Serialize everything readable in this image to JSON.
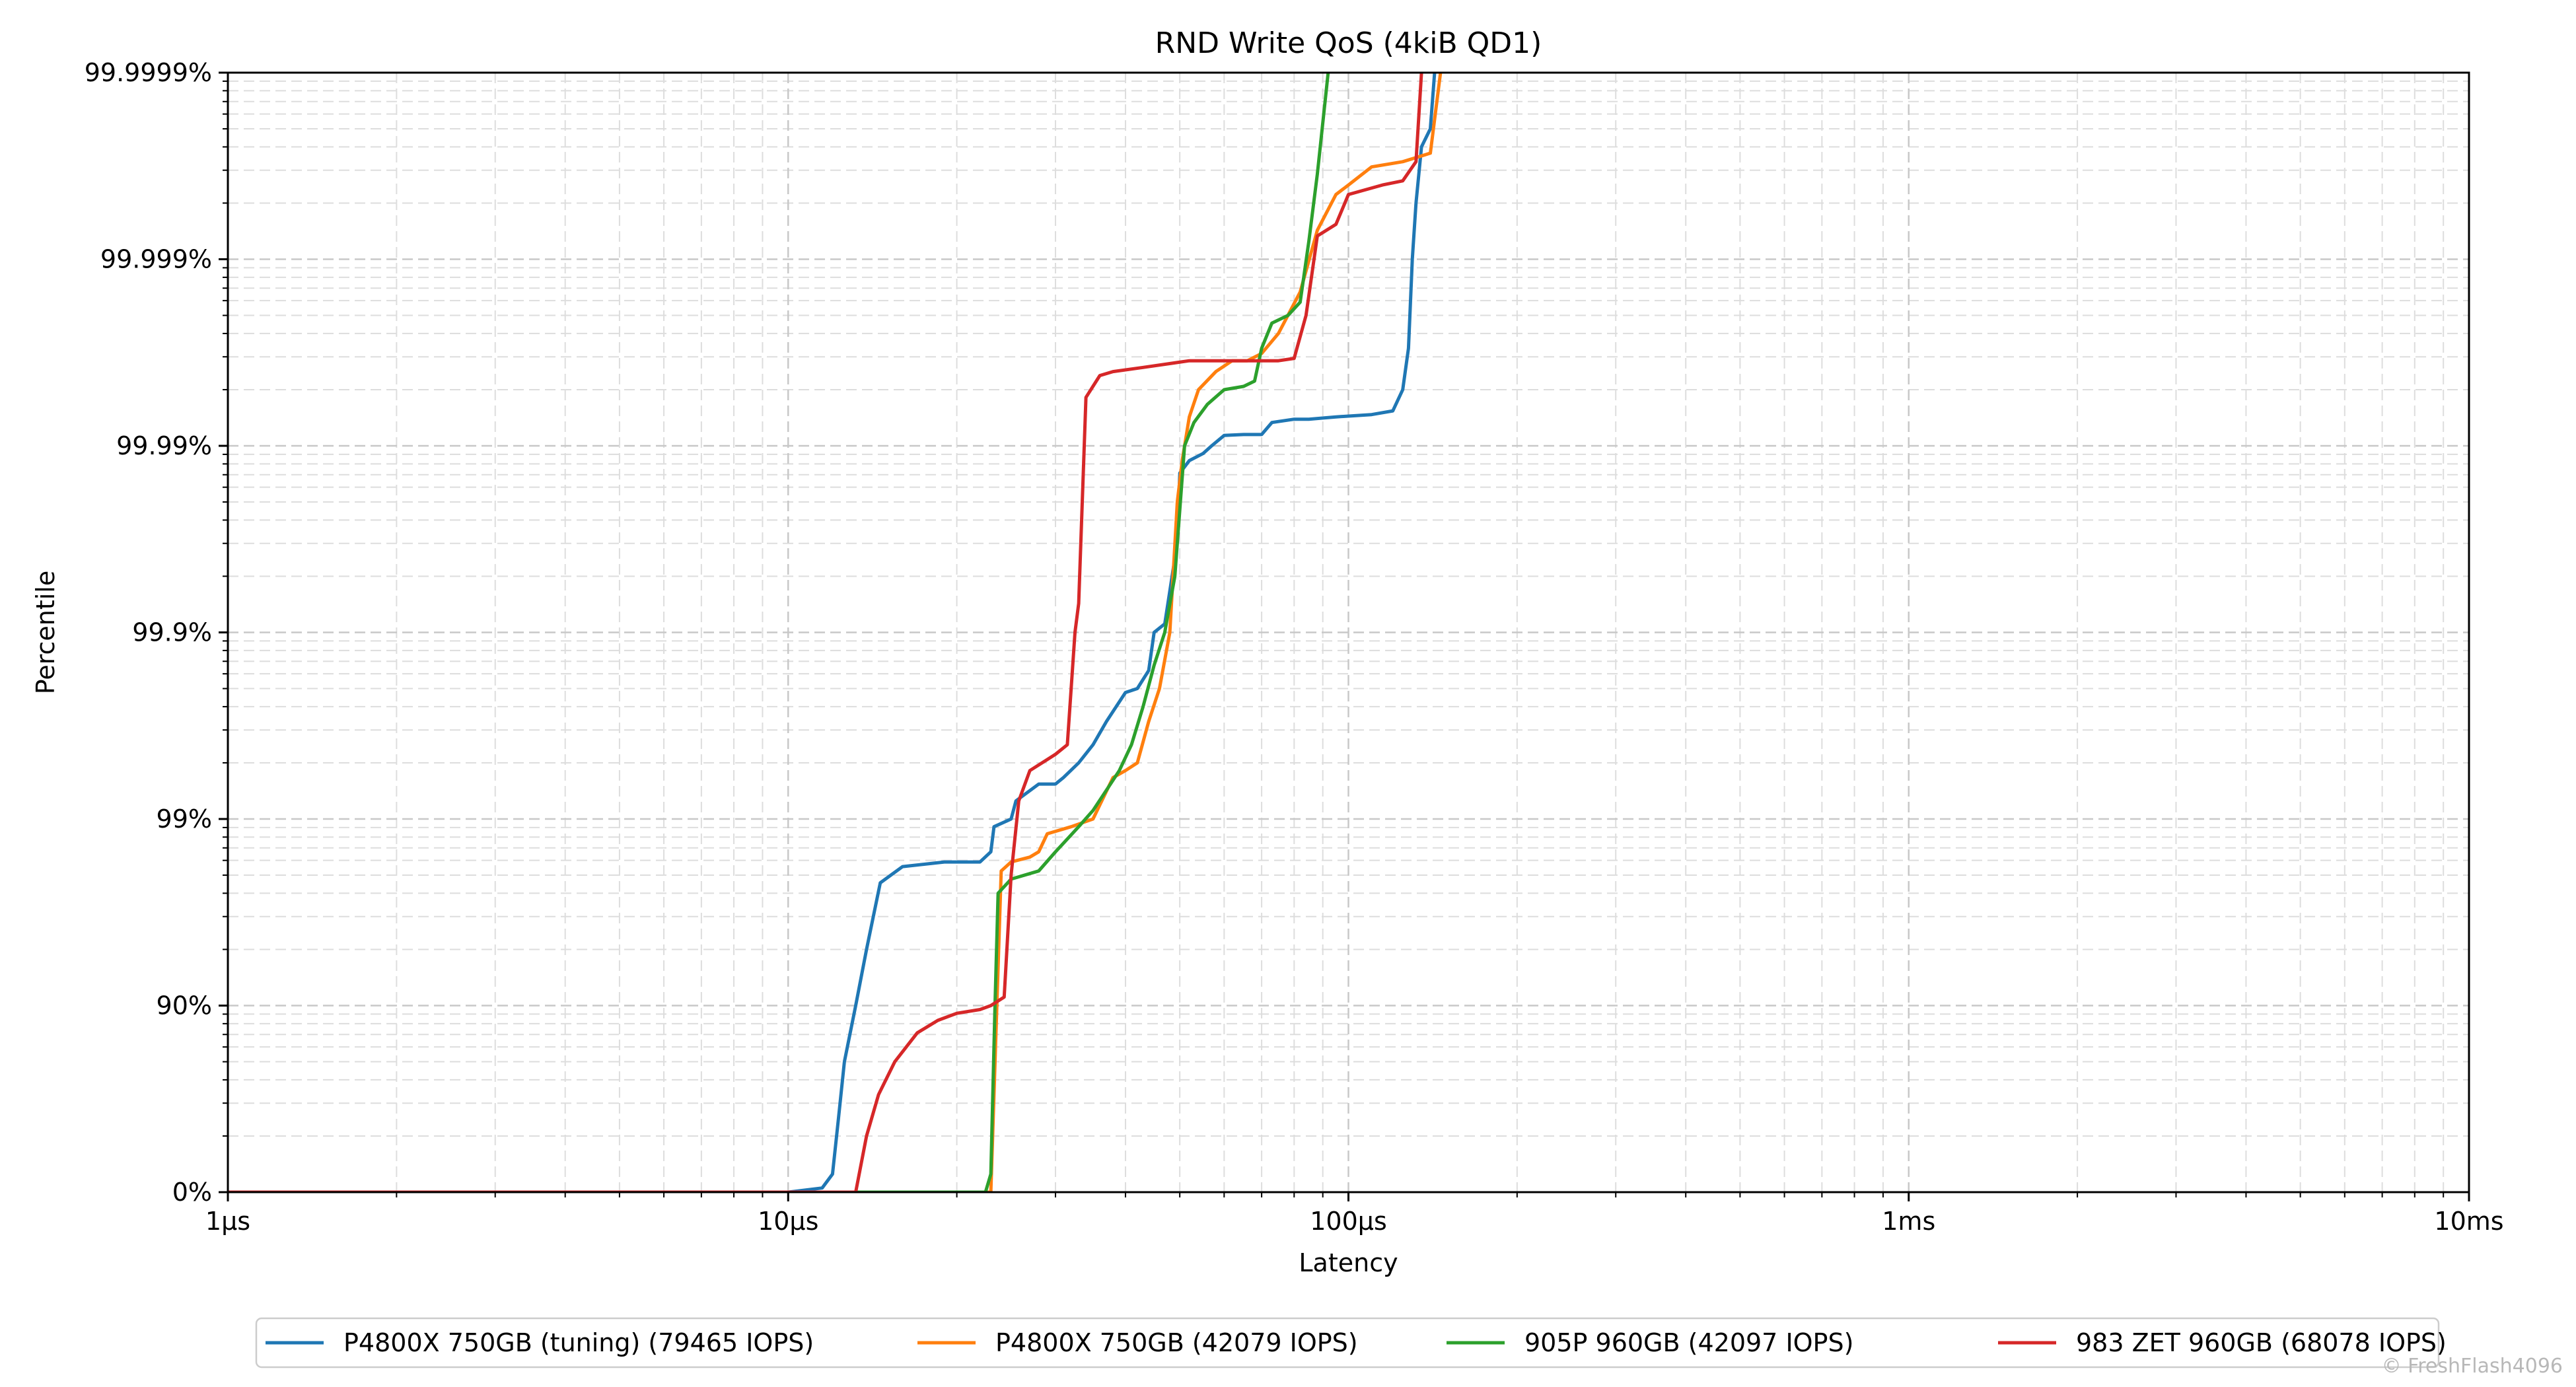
{
  "chart_data": {
    "type": "line",
    "title": "RND Write QoS (4kiB QD1)",
    "xlabel": "Latency",
    "ylabel": "Percentile",
    "x_scale": "log",
    "x_unit": "µs",
    "xlim": [
      1,
      10000
    ],
    "x_ticks": [
      {
        "value": 1,
        "label": "1µs"
      },
      {
        "value": 10,
        "label": "10µs"
      },
      {
        "value": 100,
        "label": "100µs"
      },
      {
        "value": 1000,
        "label": "1ms"
      },
      {
        "value": 10000,
        "label": "10ms"
      }
    ],
    "y_scale": "log-nines",
    "ylim": [
      0,
      99.9999
    ],
    "y_ticks": [
      {
        "value": 0,
        "label": "0%"
      },
      {
        "value": 90,
        "label": "90%"
      },
      {
        "value": 99,
        "label": "99%"
      },
      {
        "value": 99.9,
        "label": "99.9%"
      },
      {
        "value": 99.99,
        "label": "99.99%"
      },
      {
        "value": 99.999,
        "label": "99.999%"
      },
      {
        "value": 99.9999,
        "label": "99.9999%"
      }
    ],
    "grid": true,
    "legend_position": "bottom-center",
    "series": [
      {
        "name": "P4800X 750GB (tuning) (79465 IOPS)",
        "color": "#1f77b4",
        "points": [
          [
            1,
            0
          ],
          [
            10,
            0
          ],
          [
            11.5,
            5
          ],
          [
            12,
            20
          ],
          [
            12.3,
            60
          ],
          [
            12.6,
            80
          ],
          [
            13.2,
            90
          ],
          [
            13.8,
            95
          ],
          [
            14.6,
            97.8
          ],
          [
            16,
            98.2
          ],
          [
            19,
            98.3
          ],
          [
            22,
            98.3
          ],
          [
            23,
            98.5
          ],
          [
            23.3,
            98.9
          ],
          [
            25,
            99
          ],
          [
            25.5,
            99.2
          ],
          [
            28,
            99.35
          ],
          [
            30,
            99.35
          ],
          [
            31,
            99.4
          ],
          [
            33,
            99.5
          ],
          [
            35,
            99.6
          ],
          [
            37,
            99.7
          ],
          [
            40,
            99.79
          ],
          [
            42,
            99.8
          ],
          [
            44,
            99.84
          ],
          [
            45,
            99.9
          ],
          [
            47,
            99.91
          ],
          [
            48,
            99.94
          ],
          [
            49,
            99.96
          ],
          [
            49.5,
            99.97
          ],
          [
            50,
            99.986
          ],
          [
            52,
            99.988
          ],
          [
            55,
            99.989
          ],
          [
            57,
            99.99
          ],
          [
            60,
            99.9912
          ],
          [
            65,
            99.9913
          ],
          [
            70,
            99.9913
          ],
          [
            73,
            99.9925
          ],
          [
            80,
            99.9928
          ],
          [
            85,
            99.9928
          ],
          [
            95,
            99.993
          ],
          [
            110,
            99.9932
          ],
          [
            120,
            99.9935
          ],
          [
            125,
            99.995
          ],
          [
            128,
            99.997
          ],
          [
            130,
            99.999
          ],
          [
            132,
            99.9995
          ],
          [
            135,
            99.99975
          ],
          [
            140,
            99.9998
          ],
          [
            145,
            99.99995
          ],
          [
            148,
            99.9999
          ]
        ]
      },
      {
        "name": "P4800X 750GB (42079 IOPS)",
        "color": "#ff7f0e",
        "points": [
          [
            1,
            0
          ],
          [
            23,
            0
          ],
          [
            24,
            98.1
          ],
          [
            25,
            98.3
          ],
          [
            27,
            98.4
          ],
          [
            28,
            98.5
          ],
          [
            29,
            98.8
          ],
          [
            32,
            98.9
          ],
          [
            35,
            99.0
          ],
          [
            38,
            99.4
          ],
          [
            40,
            99.45
          ],
          [
            42,
            99.5
          ],
          [
            44,
            99.7
          ],
          [
            46,
            99.8
          ],
          [
            48,
            99.9
          ],
          [
            49.5,
            99.98
          ],
          [
            50.5,
            99.988
          ],
          [
            52,
            99.993
          ],
          [
            54,
            99.995
          ],
          [
            58,
            99.996
          ],
          [
            62,
            99.9965
          ],
          [
            66,
            99.9965
          ],
          [
            70,
            99.9968
          ],
          [
            75,
            99.9975
          ],
          [
            82,
            99.9985
          ],
          [
            88,
            99.9993
          ],
          [
            95,
            99.99955
          ],
          [
            100,
            99.9996
          ],
          [
            110,
            99.99968
          ],
          [
            125,
            99.9997
          ],
          [
            140,
            99.99973
          ],
          [
            146,
            99.9999
          ]
        ]
      },
      {
        "name": "905P 960GB (42097 IOPS)",
        "color": "#2ca02c",
        "points": [
          [
            1,
            0
          ],
          [
            22.5,
            0
          ],
          [
            23,
            20
          ],
          [
            23.4,
            90
          ],
          [
            23.7,
            97.5
          ],
          [
            25,
            97.9
          ],
          [
            28,
            98.1
          ],
          [
            30,
            98.5
          ],
          [
            33,
            98.9
          ],
          [
            35,
            99.1
          ],
          [
            37,
            99.3
          ],
          [
            39,
            99.45
          ],
          [
            41,
            99.6
          ],
          [
            43,
            99.75
          ],
          [
            45,
            99.85
          ],
          [
            47,
            99.9
          ],
          [
            49,
            99.95
          ],
          [
            51,
            99.99
          ],
          [
            53,
            99.9925
          ],
          [
            56,
            99.994
          ],
          [
            60,
            99.995
          ],
          [
            65,
            99.9952
          ],
          [
            68,
            99.9955
          ],
          [
            70,
            99.997
          ],
          [
            73,
            99.9978
          ],
          [
            78,
            99.998
          ],
          [
            82,
            99.9983
          ],
          [
            85,
            99.9992
          ],
          [
            88,
            99.99965
          ],
          [
            92,
            99.9999
          ]
        ]
      },
      {
        "name": "983 ZET 960GB (68078 IOPS)",
        "color": "#d62728",
        "points": [
          [
            1,
            0
          ],
          [
            13.2,
            0
          ],
          [
            13.8,
            50
          ],
          [
            14.5,
            70
          ],
          [
            15.5,
            80
          ],
          [
            17,
            86
          ],
          [
            18.5,
            88
          ],
          [
            20,
            89
          ],
          [
            22,
            89.5
          ],
          [
            23,
            90
          ],
          [
            24.3,
            91
          ],
          [
            25,
            98
          ],
          [
            25.8,
            99.2
          ],
          [
            27,
            99.45
          ],
          [
            29,
            99.52
          ],
          [
            30,
            99.55
          ],
          [
            31.5,
            99.6
          ],
          [
            32.5,
            99.9
          ],
          [
            33,
            99.93
          ],
          [
            34,
            99.9945
          ],
          [
            36,
            99.9958
          ],
          [
            38,
            99.996
          ],
          [
            43,
            99.9962
          ],
          [
            52,
            99.9965
          ],
          [
            60,
            99.9965
          ],
          [
            75,
            99.9965
          ],
          [
            80,
            99.9966
          ],
          [
            84,
            99.998
          ],
          [
            88,
            99.99925
          ],
          [
            95,
            99.99935
          ],
          [
            100,
            99.99955
          ],
          [
            115,
            99.9996
          ],
          [
            125,
            99.99962
          ],
          [
            132,
            99.9997
          ],
          [
            135,
            99.9999
          ]
        ]
      }
    ]
  },
  "credit": "© FreshFlash4096"
}
